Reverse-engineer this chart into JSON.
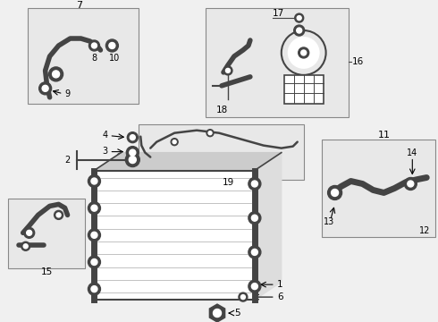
{
  "bg_color": "#f0f0f0",
  "line_color": "#444444",
  "box_fill": "#e8e8e8",
  "box_ec": "#888888",
  "white": "#ffffff"
}
